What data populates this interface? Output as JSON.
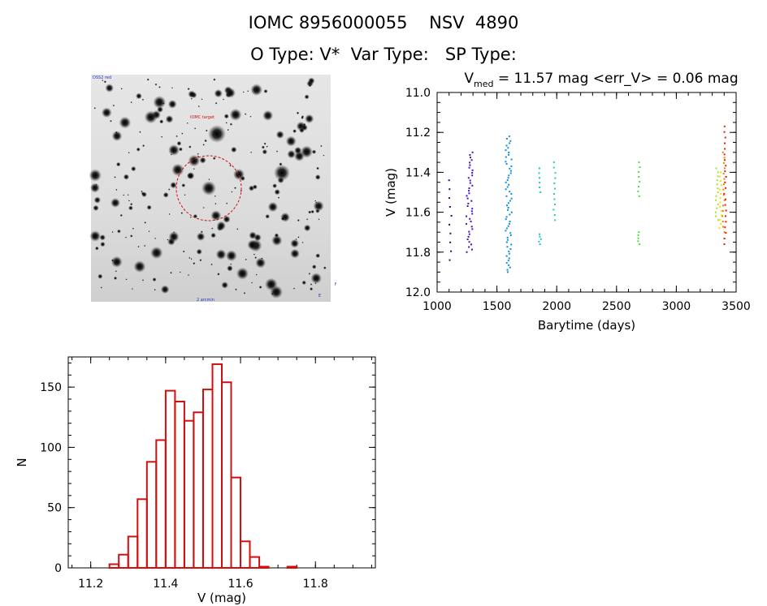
{
  "header": {
    "line1": "IOMC 8956000055    NSV  4890",
    "line2": "O Type: V*  Var Type:   SP Type:"
  },
  "colors": {
    "histogram": "#d01010",
    "circle": "#d01010",
    "lc_palette": [
      "#3a0070",
      "#4a10c8",
      "#1090e0",
      "#18c8c8",
      "#20d880",
      "#48e040",
      "#a8e030",
      "#f0e000",
      "#f08000",
      "#e02000"
    ]
  },
  "finder": {
    "corner_label": "DSS2 red",
    "target_label": "IOMC target",
    "scale_label": "2 arcmin",
    "north_label": "N",
    "east_label": "E"
  },
  "chart_data": [
    {
      "type": "scatter",
      "title_prefix": "V",
      "title_sub": "med",
      "title_rest": " = 11.57 mag <err_V> = 0.06 mag",
      "xlabel": "Barytime (days)",
      "ylabel": "V (mag)",
      "xlim": [
        1000,
        3500
      ],
      "ylim": [
        12.0,
        11.0
      ],
      "xticks": [
        1000,
        1500,
        2000,
        2500,
        3000,
        3500
      ],
      "yticks": [
        11.0,
        11.2,
        11.4,
        11.6,
        11.8,
        12.0
      ],
      "ytick_labels": [
        "11.0",
        "11.2",
        "11.4",
        "11.6",
        "11.8",
        "12.0"
      ],
      "groups": [
        {
          "x": 1110,
          "ymin": 11.44,
          "ymax": 11.84,
          "n": 10,
          "color_index": 0
        },
        {
          "x": 1270,
          "ymin": 11.3,
          "ymax": 11.8,
          "n": 40,
          "color_index": 1
        },
        {
          "x": 1600,
          "ymin": 11.22,
          "ymax": 11.9,
          "n": 60,
          "color_index": 2
        },
        {
          "x": 1860,
          "ymin": 11.71,
          "ymax": 11.76,
          "n": 5,
          "color_index": 3
        },
        {
          "x": 1860,
          "ymin": 11.38,
          "ymax": 11.5,
          "n": 6,
          "color_index": 3
        },
        {
          "x": 1980,
          "ymin": 11.35,
          "ymax": 11.64,
          "n": 12,
          "color_index": 4
        },
        {
          "x": 2690,
          "ymin": 11.35,
          "ymax": 11.52,
          "n": 8,
          "color_index": 5
        },
        {
          "x": 2690,
          "ymin": 11.7,
          "ymax": 11.76,
          "n": 5,
          "color_index": 5
        },
        {
          "x": 3340,
          "ymin": 11.38,
          "ymax": 11.64,
          "n": 14,
          "color_index": 6
        },
        {
          "x": 3370,
          "ymin": 11.4,
          "ymax": 11.68,
          "n": 14,
          "color_index": 7
        },
        {
          "x": 3395,
          "ymin": 11.3,
          "ymax": 11.7,
          "n": 16,
          "color_index": 8
        },
        {
          "x": 3410,
          "ymin": 11.17,
          "ymax": 11.76,
          "n": 22,
          "color_index": 9
        }
      ]
    },
    {
      "type": "bar",
      "histogram": true,
      "xlabel": "V (mag)",
      "ylabel": "N",
      "xlim": [
        11.14,
        11.96
      ],
      "ylim": [
        0,
        175
      ],
      "xticks": [
        11.2,
        11.4,
        11.6,
        11.8
      ],
      "xtick_labels": [
        "11.2",
        "11.4",
        "11.6",
        "11.8"
      ],
      "yticks": [
        0,
        50,
        100,
        150
      ],
      "bin_width": 0.025,
      "bin_starts": [
        11.15,
        11.175,
        11.2,
        11.225,
        11.25,
        11.275,
        11.3,
        11.325,
        11.35,
        11.375,
        11.4,
        11.425,
        11.45,
        11.475,
        11.5,
        11.525,
        11.55,
        11.575,
        11.6,
        11.625,
        11.65,
        11.675,
        11.7,
        11.725,
        11.75,
        11.775,
        11.8,
        11.825,
        11.85,
        11.875,
        11.9
      ],
      "values": [
        0,
        0,
        0,
        0,
        3,
        11,
        26,
        57,
        88,
        106,
        147,
        138,
        122,
        129,
        148,
        169,
        154,
        75,
        22,
        9,
        1,
        0,
        0,
        1,
        0,
        0,
        0,
        0,
        0,
        0,
        0
      ]
    }
  ]
}
